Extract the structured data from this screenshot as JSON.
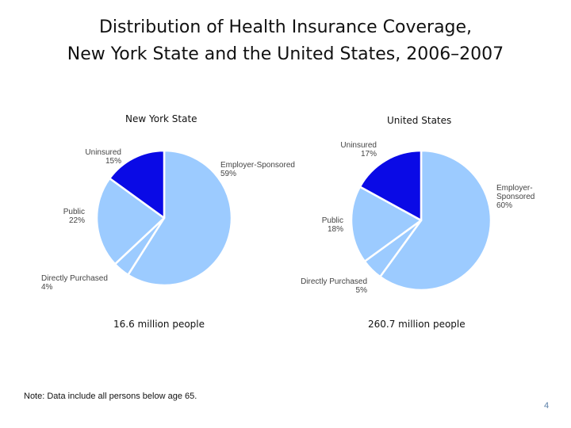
{
  "title": {
    "line1": "Distribution of Health Insurance Coverage,",
    "line2": "New York State and the United States, 2006–2007"
  },
  "note": "Note: Data include all persons below age 65.",
  "page_number": "4",
  "colors": {
    "employer": "#9ccbff",
    "directly": "#9ccbff",
    "public": "#9ccbff",
    "uninsured": "#0a0ae6",
    "stroke": "#ffffff"
  },
  "chart_data": [
    {
      "type": "pie",
      "title": "New York State",
      "population_label": "16.6 million people",
      "slices": [
        {
          "key": "employer",
          "name": "Employer-Sponsored",
          "name_lines": [
            "Employer-Sponsored"
          ],
          "pct_text": "59%",
          "value": 59
        },
        {
          "key": "directly",
          "name": "Directly Purchased",
          "name_lines": [
            "Directly Purchased"
          ],
          "pct_text": "4%",
          "value": 4
        },
        {
          "key": "public",
          "name": "Public",
          "name_lines": [
            "Public"
          ],
          "pct_text": "22%",
          "value": 22
        },
        {
          "key": "uninsured",
          "name": "Uninsured",
          "name_lines": [
            "Uninsured"
          ],
          "pct_text": "15%",
          "value": 15
        }
      ]
    },
    {
      "type": "pie",
      "title": "United States",
      "population_label": "260.7 million people",
      "slices": [
        {
          "key": "employer",
          "name": "Employer-Sponsored",
          "name_lines": [
            "Employer-",
            "Sponsored"
          ],
          "pct_text": "60%",
          "value": 60
        },
        {
          "key": "directly",
          "name": "Directly Purchased",
          "name_lines": [
            "Directly Purchased"
          ],
          "pct_text": "5%",
          "value": 5
        },
        {
          "key": "public",
          "name": "Public",
          "name_lines": [
            "Public"
          ],
          "pct_text": "18%",
          "value": 18
        },
        {
          "key": "uninsured",
          "name": "Uninsured",
          "name_lines": [
            "Uninsured"
          ],
          "pct_text": "17%",
          "value": 17
        }
      ]
    }
  ]
}
